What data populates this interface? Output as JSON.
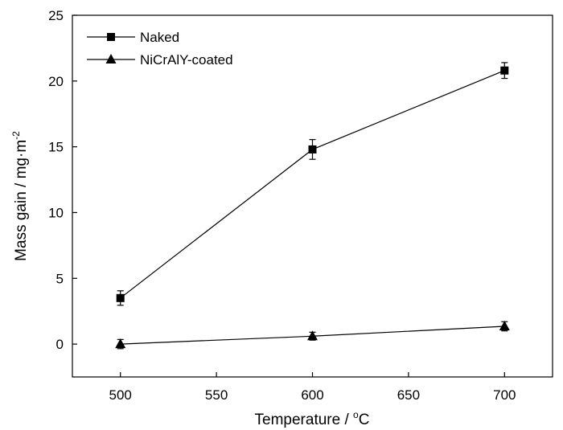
{
  "chart_data": {
    "type": "line",
    "title": "",
    "xlabel": "Temperature / ",
    "xlabel_unit": "C",
    "xlabel_unit_prefix": "o",
    "ylabel": "Mass gain / mg·m",
    "ylabel_sup": "-2",
    "xlim": [
      475,
      725
    ],
    "ylim": [
      -2.5,
      25
    ],
    "xticks": [
      500,
      550,
      600,
      650,
      700
    ],
    "yticks": [
      0,
      5,
      10,
      15,
      20,
      25
    ],
    "grid": false,
    "legend_position": "top-left",
    "series": [
      {
        "name": "Naked",
        "marker": "square",
        "x": [
          500,
          600,
          700
        ],
        "y": [
          3.5,
          14.8,
          20.8
        ],
        "error": [
          0.55,
          0.75,
          0.6
        ]
      },
      {
        "name": "NiCrAlY-coated",
        "marker": "triangle",
        "x": [
          500,
          600,
          700
        ],
        "y": [
          0.0,
          0.6,
          1.35
        ],
        "error": [
          0.35,
          0.3,
          0.35
        ]
      }
    ],
    "color": "#000000"
  }
}
